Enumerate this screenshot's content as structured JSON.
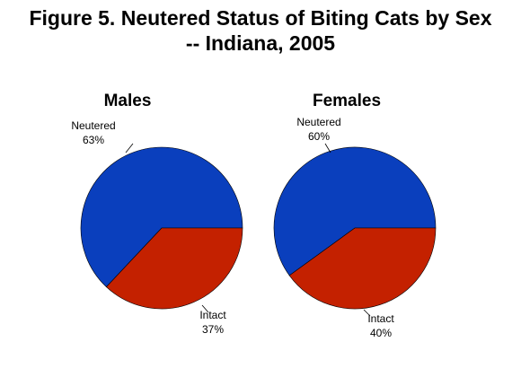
{
  "title_line1": "Figure 5. Neutered Status of Biting Cats by Sex",
  "title_line2": "-- Indiana, 2005",
  "chart_data": [
    {
      "type": "pie",
      "title": "Males",
      "slices": [
        {
          "label": "Neutered",
          "value_text": "63%",
          "value": 63,
          "color": "#0a3fbd"
        },
        {
          "label": "Intact",
          "value_text": "37%",
          "value": 37,
          "color": "#c42100"
        }
      ]
    },
    {
      "type": "pie",
      "title": "Females",
      "slices": [
        {
          "label": "Neutered",
          "value_text": "60%",
          "value": 60,
          "color": "#0a3fbd"
        },
        {
          "label": "Intact",
          "value_text": "40%",
          "value": 40,
          "color": "#c42100"
        }
      ]
    }
  ]
}
